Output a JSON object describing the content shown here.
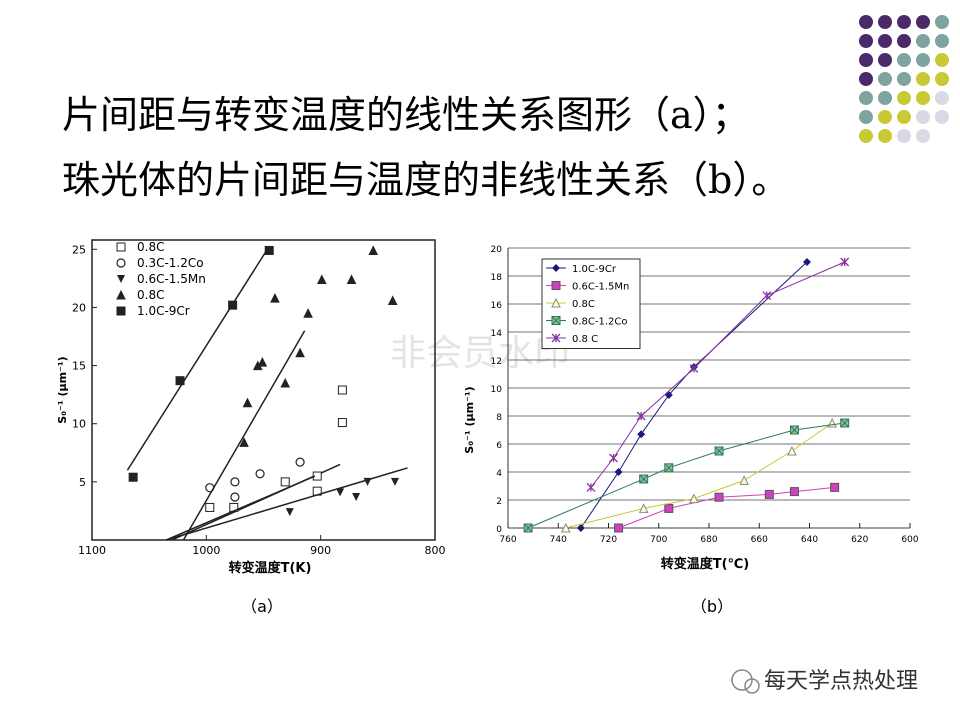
{
  "slide": {
    "title_lines": [
      "片间距与转变温度的线性关系图形（a）；",
      "珠光体的片间距与温度的非线性关系（b）。"
    ],
    "watermark": "非会员水印",
    "footer": "每天学点热处理"
  },
  "chart_data": [
    {
      "type": "scatter",
      "caption": "（a）",
      "xlabel": "转变温度T(K)",
      "ylabel": "S₀⁻¹ (μm⁻¹)",
      "xlim": [
        1100,
        800
      ],
      "ylim": [
        0,
        25.8
      ],
      "xticks": [
        1100,
        1000,
        900,
        800
      ],
      "yticks": [
        5,
        10,
        15,
        20,
        25
      ],
      "grid": false,
      "series": [
        {
          "name": "0.8C",
          "marker": "square-open",
          "color": "#222",
          "x": [
            997,
            976,
            931,
            903,
            903,
            881,
            881
          ],
          "y": [
            2.8,
            2.8,
            5,
            4.2,
            5.5,
            10.1,
            12.9
          ],
          "fit_x": [
            1030,
            883
          ],
          "fit_y": [
            0,
            6.5
          ]
        },
        {
          "name": "0.3C-1.2Co",
          "marker": "circle-open",
          "color": "#222",
          "x": [
            997,
            975,
            975,
            953,
            918
          ],
          "y": [
            4.5,
            5,
            3.7,
            5.7,
            6.7
          ],
          "fit_x": [
            1035,
            905
          ],
          "fit_y": [
            0,
            5.5
          ]
        },
        {
          "name": "0.6C-1.5Mn",
          "marker": "triangle-down",
          "color": "#222",
          "x": [
            927,
            883,
            869,
            859,
            835
          ],
          "y": [
            2.4,
            4.1,
            3.7,
            5,
            5
          ],
          "fit_x": [
            1035,
            824
          ],
          "fit_y": [
            0,
            6.2
          ]
        },
        {
          "name": "0.8C",
          "marker": "triangle-filled",
          "color": "#222",
          "x": [
            967,
            964,
            951,
            955,
            940,
            931,
            918,
            911,
            899,
            873,
            854,
            837
          ],
          "y": [
            8.4,
            11.8,
            15.3,
            15,
            20.8,
            13.5,
            16.1,
            19.5,
            22.4,
            22.4,
            24.9,
            20.6
          ],
          "fit_x": [
            1020,
            914
          ],
          "fit_y": [
            0,
            18
          ]
        },
        {
          "name": "1.0C-9Cr",
          "marker": "square-filled",
          "color": "#222",
          "x": [
            1064,
            1023,
            977,
            945
          ],
          "y": [
            5.4,
            13.7,
            20.2,
            24.9
          ],
          "fit_x": [
            1069,
            946
          ],
          "fit_y": [
            6,
            25.1
          ]
        }
      ]
    },
    {
      "type": "line",
      "caption": "（b）",
      "xlabel": "转变温度T(℃)",
      "ylabel": "S₀⁻¹ (μm⁻¹)",
      "xlim": [
        760,
        600
      ],
      "ylim": [
        0,
        20
      ],
      "xticks": [
        760,
        740,
        720,
        700,
        680,
        660,
        640,
        620,
        600
      ],
      "yticks": [
        0,
        2,
        4,
        6,
        8,
        10,
        12,
        14,
        16,
        18,
        20
      ],
      "grid": true,
      "series": [
        {
          "name": "1.0C-9Cr",
          "marker": "diamond",
          "color": "#1a1a7a",
          "x": [
            731,
            716,
            707,
            696,
            686,
            641
          ],
          "y": [
            0,
            4,
            6.7,
            9.5,
            11.5,
            19
          ]
        },
        {
          "name": "0.6C-1.5Mn",
          "marker": "square",
          "color": "#d040c0",
          "x": [
            716,
            696,
            676,
            656,
            646,
            630
          ],
          "y": [
            0,
            1.4,
            2.2,
            2.4,
            2.6,
            2.9
          ]
        },
        {
          "name": "0.8C",
          "marker": "triangle-open",
          "color": "#c8c832",
          "x": [
            737,
            706,
            686,
            666,
            647,
            631
          ],
          "y": [
            0,
            1.4,
            2.1,
            3.4,
            5.5,
            7.5
          ]
        },
        {
          "name": "0.8C-1.2Co",
          "marker": "square-x",
          "color": "#2a7a5a",
          "x": [
            752,
            706,
            696,
            676,
            646,
            626
          ],
          "y": [
            0,
            3.5,
            4.3,
            5.5,
            7,
            7.5
          ]
        },
        {
          "name": "0.8 C",
          "marker": "star",
          "color": "#8a30a0",
          "x": [
            727,
            718,
            707,
            686,
            657,
            626
          ],
          "y": [
            2.9,
            5,
            8,
            11.4,
            16.6,
            19
          ]
        }
      ]
    }
  ]
}
